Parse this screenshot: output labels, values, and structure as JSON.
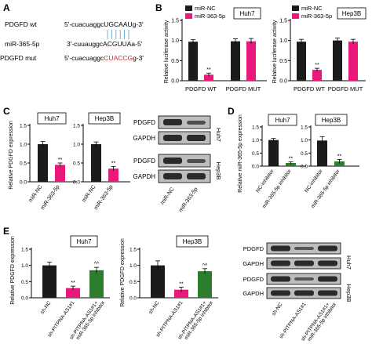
{
  "colors": {
    "nc": "#1b1b1b",
    "mir": "#e8197a",
    "mir_light": "#e94c8d",
    "inhibitor": "#2e7d2e",
    "blot_bg": "#bdbdbd",
    "blot_band": "#2a2a2a",
    "mutation": "#e02020",
    "binding": "#4aa3d8"
  },
  "panel_A": {
    "label": "A",
    "rows": [
      {
        "name": "PDGFD  wt",
        "prefix": "5'-cuacuaggc",
        "highlight": "UGCAAU",
        "suffix": "g-3'",
        "highlight_color": "black"
      },
      {
        "name": "miR-365-5p",
        "prefix": "3'-cuuauggc",
        "highlight": "ACGUUA",
        "suffix": "a-5'",
        "highlight_color": "black"
      },
      {
        "name": "PDGFD  mut",
        "prefix": "5'-cuacuaggc",
        "highlight": "CUACCG",
        "suffix": "g-3'",
        "highlight_color": "red"
      }
    ]
  },
  "panel_B": {
    "label": "B",
    "chart_data": [
      {
        "type": "bar",
        "title": "Huh7",
        "ylabel": "Relative luciferase activity",
        "ylim": [
          0,
          1.5
        ],
        "yticks": [
          "0.0",
          "0.5",
          "1.0",
          "1.5"
        ],
        "categories": [
          "PDGFD WT",
          "PDGFD MUT"
        ],
        "series": [
          {
            "name": "miR-NC",
            "values": [
              0.97,
              0.98
            ],
            "errors": [
              0.05,
              0.06
            ]
          },
          {
            "name": "miR-363-5p",
            "values": [
              0.15,
              0.98
            ],
            "errors": [
              0.04,
              0.07
            ]
          }
        ],
        "annotations": [
          "**"
        ],
        "legend": "top-left"
      },
      {
        "type": "bar",
        "title": "Hep3B",
        "ylabel": "Relative luciferase activity",
        "ylim": [
          0,
          1.5
        ],
        "yticks": [
          "0.0",
          "0.5",
          "1.0",
          "1.5"
        ],
        "categories": [
          "PDGFD WT",
          "PDGFD MUT"
        ],
        "series": [
          {
            "name": "miR-NC",
            "values": [
              0.97,
              1.0
            ],
            "errors": [
              0.06,
              0.06
            ]
          },
          {
            "name": "miR-363-5p",
            "values": [
              0.27,
              0.97
            ],
            "errors": [
              0.04,
              0.06
            ]
          }
        ],
        "annotations": [
          "**"
        ],
        "legend": "top-left"
      }
    ]
  },
  "panel_C": {
    "label": "C",
    "ylabel": "Relative PDGFD expression",
    "chart_data": [
      {
        "type": "bar",
        "title": "Huh7",
        "ylim": [
          0,
          1.5
        ],
        "yticks": [
          "0.0",
          "0.5",
          "1.0",
          "1.5"
        ],
        "categories": [
          "miR-NC",
          "miR-363-5p"
        ],
        "values": [
          1.0,
          0.45
        ],
        "errors": [
          0.07,
          0.05
        ],
        "annotations": [
          "",
          "**"
        ]
      },
      {
        "type": "bar",
        "title": "Hep3B",
        "ylim": [
          0,
          1.5
        ],
        "yticks": [
          "0.0",
          "0.5",
          "1.0",
          "1.5"
        ],
        "categories": [
          "miR-NC",
          "miR-363-5p"
        ],
        "values": [
          1.0,
          0.35
        ],
        "errors": [
          0.06,
          0.06
        ],
        "annotations": [
          "",
          "**"
        ]
      }
    ],
    "blot": {
      "rows": [
        "PDGFD",
        "GAPDH",
        "PDGFD",
        "GAPDH"
      ],
      "cells": [
        "Huh7",
        "Hep3B"
      ],
      "lanes": [
        "miR-NC",
        "miR-363-5p"
      ]
    }
  },
  "panel_D": {
    "label": "D",
    "ylabel": "Relative miR-365-5p expression",
    "chart_data": [
      {
        "type": "bar",
        "title": "Huh7",
        "ylim": [
          0,
          1.5
        ],
        "yticks": [
          "0.0",
          "0.5",
          "1.0",
          "1.5"
        ],
        "categories": [
          "NC-inhibitor",
          "miR-365-5p inhibitor"
        ],
        "values": [
          1.0,
          0.12
        ],
        "errors": [
          0.06,
          0.04
        ],
        "annotations": [
          "",
          "**"
        ]
      },
      {
        "type": "bar",
        "title": "Hep3B",
        "ylim": [
          0,
          1.5
        ],
        "yticks": [
          "0.0",
          "0.5",
          "1.0",
          "1.5"
        ],
        "categories": [
          "NC-inhibitor",
          "miR-365-5p inhibitor"
        ],
        "values": [
          0.98,
          0.18
        ],
        "errors": [
          0.15,
          0.08
        ],
        "annotations": [
          "",
          "**"
        ]
      }
    ]
  },
  "panel_E": {
    "label": "E",
    "ylabel": "Relative PDGFD expression",
    "chart_data": [
      {
        "type": "bar",
        "title": "Huh7",
        "ylim": [
          0,
          1.5
        ],
        "yticks": [
          "0.0",
          "0.5",
          "1.0",
          "1.5"
        ],
        "categories": [
          "sh-NC",
          "sh-PITPNA-AS1#1",
          "sh-PITPNA-AS1#1+ miR-365-5p inhibitor"
        ],
        "values": [
          1.0,
          0.3,
          0.85
        ],
        "errors": [
          0.1,
          0.06,
          0.09
        ],
        "annotations": [
          "",
          "**",
          "^^"
        ]
      },
      {
        "type": "bar",
        "title": "Hep3B",
        "ylim": [
          0,
          1.5
        ],
        "yticks": [
          "0.0",
          "0.5",
          "1.0",
          "1.5"
        ],
        "categories": [
          "sh-NC",
          "sh-PITPNA-AS1#1",
          "sh-PITPNA-AS1#1+ miR-365-5p inhibitor"
        ],
        "values": [
          1.0,
          0.25,
          0.82
        ],
        "errors": [
          0.14,
          0.08,
          0.08
        ],
        "annotations": [
          "",
          "**",
          "^^"
        ]
      }
    ],
    "blot": {
      "rows": [
        "PDGFD",
        "GAPDH",
        "PDGFD",
        "GAPDH"
      ],
      "cells": [
        "Huh7",
        "Hep3B"
      ],
      "lanes": [
        "sh-NC",
        "sh-PITPNA-AS1#1",
        "sh-PITPNA-AS1#1+ miR-365-5p inhibitor"
      ]
    }
  }
}
